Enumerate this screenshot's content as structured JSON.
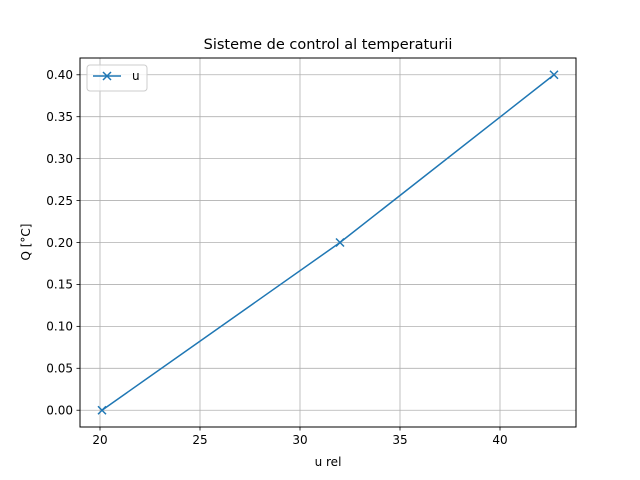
{
  "chart_data": {
    "type": "line",
    "title": "Sisteme de control al temperaturii",
    "xlabel": "u rel",
    "ylabel": "Q [°C]",
    "xlim": [
      19.0,
      43.8
    ],
    "ylim": [
      -0.02,
      0.42
    ],
    "x_ticks": [
      20,
      25,
      30,
      35,
      40
    ],
    "y_ticks": [
      0.0,
      0.05,
      0.1,
      0.15,
      0.2,
      0.25,
      0.3,
      0.35,
      0.4
    ],
    "x_tick_labels": [
      "20",
      "25",
      "30",
      "35",
      "40"
    ],
    "y_tick_labels": [
      "0.00",
      "0.05",
      "0.10",
      "0.15",
      "0.20",
      "0.25",
      "0.30",
      "0.35",
      "0.40"
    ],
    "grid": true,
    "legend_position": "top-left",
    "series": [
      {
        "name": "u",
        "color": "#1f77b4",
        "marker": "x",
        "x": [
          20.1,
          32.0,
          42.7
        ],
        "y": [
          0.0,
          0.2,
          0.4
        ]
      }
    ]
  }
}
